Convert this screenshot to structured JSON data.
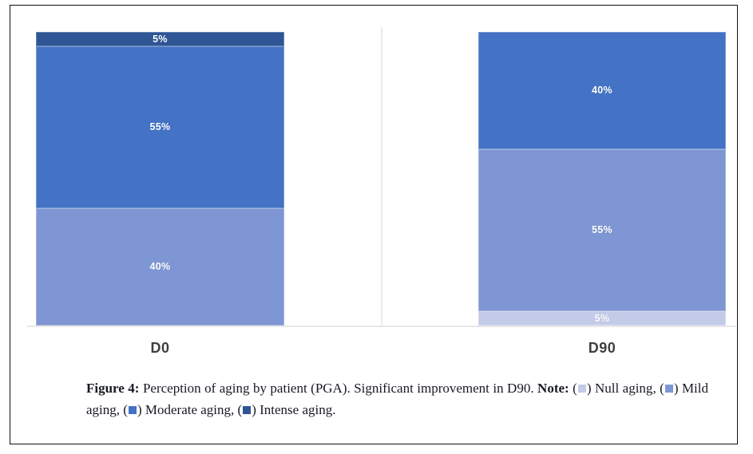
{
  "figure": {
    "chart_data": {
      "type": "bar",
      "stacked": true,
      "categories": [
        "D0",
        "D90"
      ],
      "series": [
        {
          "name": "Null aging",
          "color": "#c3cbe9",
          "values": [
            0,
            5
          ]
        },
        {
          "name": "Mild aging",
          "color": "#7e96d3",
          "values": [
            40,
            55
          ]
        },
        {
          "name": "Moderate aging",
          "color": "#4472c4",
          "values": [
            55,
            40
          ]
        },
        {
          "name": "Intense aging",
          "color": "#2e5594",
          "values": [
            5,
            0
          ]
        }
      ],
      "value_label_suffix": "%",
      "title": "",
      "xlabel": "",
      "ylabel": "",
      "ylim": [
        0,
        100
      ],
      "grid": false,
      "legend_position": "caption"
    },
    "caption": {
      "figure_label": "Figure 4:",
      "text": "Perception of aging by patient (PGA). Significant improvement in D90.",
      "note_label": "Note:",
      "legend": [
        {
          "label": "Null aging",
          "color": "#c3cbe9"
        },
        {
          "label": "Mild aging",
          "color": "#7e96d3"
        },
        {
          "label": "Moderate aging",
          "color": "#4472c4"
        },
        {
          "label": "Intense aging",
          "color": "#2e5594"
        }
      ]
    },
    "colors": {
      "frame_border": "#111111",
      "axis_line": "#e7e7e7",
      "divider": "#ebebeb",
      "category_label": "#3f3f3f",
      "bar_label_text": "#ffffff"
    }
  }
}
